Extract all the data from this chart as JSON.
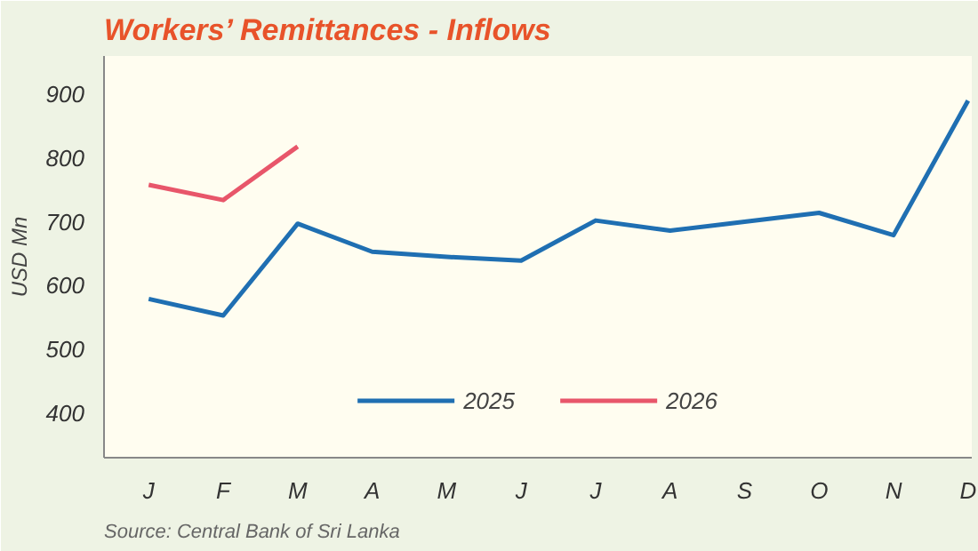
{
  "chart_data": {
    "type": "line",
    "title": "Workers’ Remittances - Inflows",
    "ylabel": "USD Mn",
    "categories": [
      "J",
      "F",
      "M",
      "A",
      "M",
      "J",
      "J",
      "A",
      "S",
      "O",
      "N",
      "D"
    ],
    "series": [
      {
        "name": "2025",
        "color": "#1f6fb2",
        "values": [
          579,
          553,
          697,
          653,
          645,
          639,
          702,
          686,
          700,
          714,
          679,
          890
        ]
      },
      {
        "name": "2026",
        "color": "#e8566a",
        "values": [
          758,
          734,
          818,
          null,
          null,
          null,
          null,
          null,
          null,
          null,
          null,
          null
        ]
      }
    ],
    "ylim": [
      330,
      960
    ],
    "yticks": [
      400,
      500,
      600,
      700,
      800,
      900
    ],
    "grid": false,
    "legend": "bottom",
    "marker": "none",
    "line_style": "solid",
    "annotations": [
      "Source: Central Bank of Sri Lanka"
    ]
  }
}
